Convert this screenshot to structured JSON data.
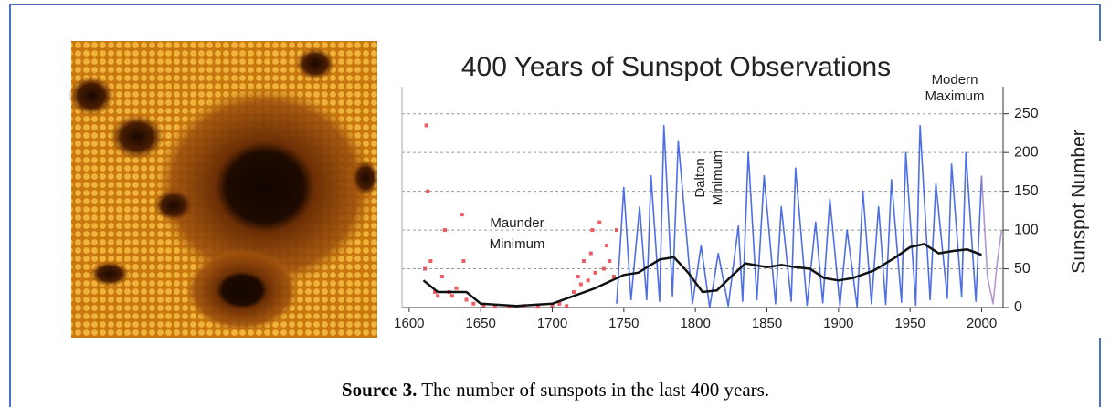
{
  "chart_data": {
    "type": "line",
    "title": "400 Years of Sunspot Observations",
    "y_label": "Sunspot Number",
    "y_axis_side": "right",
    "grid": true,
    "xlim": [
      1595,
      2015
    ],
    "ylim": [
      0,
      285
    ],
    "xticks": [
      1600,
      1650,
      1700,
      1750,
      1800,
      1850,
      1900,
      1950,
      2000
    ],
    "yticks": [
      0,
      50,
      100,
      150,
      200,
      250
    ],
    "annotations": [
      [
        "Maunder",
        "Minimum"
      ],
      [
        "Dalton",
        "Minimum"
      ],
      [
        "Modern",
        "Maximum"
      ]
    ],
    "series": [
      {
        "kind": "scatter",
        "color": "#e8333a",
        "x": [
          1611,
          1612,
          1613,
          1615,
          1618,
          1620,
          1623,
          1625,
          1628,
          1630,
          1633,
          1637,
          1638,
          1640,
          1645,
          1652,
          1660,
          1670,
          1680,
          1690,
          1700,
          1705,
          1710,
          1715,
          1718,
          1720,
          1722,
          1725,
          1727,
          1728,
          1730,
          1733,
          1736,
          1738,
          1740,
          1743,
          1745
        ],
        "values": [
          50,
          235,
          150,
          60,
          20,
          15,
          40,
          100,
          20,
          15,
          25,
          120,
          60,
          10,
          5,
          3,
          2,
          1,
          2,
          1,
          3,
          5,
          2,
          20,
          40,
          30,
          60,
          35,
          70,
          100,
          45,
          110,
          50,
          80,
          60,
          40,
          100
        ]
      },
      {
        "kind": "line",
        "color": "#2f55e0",
        "x": [
          1745,
          1750,
          1755,
          1761,
          1766,
          1769,
          1775,
          1778,
          1784,
          1788,
          1798,
          1804,
          1810,
          1816,
          1823,
          1830,
          1833,
          1837,
          1843,
          1848,
          1856,
          1860,
          1867,
          1870,
          1878,
          1884,
          1889,
          1894,
          1901,
          1906,
          1913,
          1917,
          1923,
          1928,
          1933,
          1937,
          1944,
          1947,
          1954,
          1957,
          1964,
          1968,
          1976,
          1979,
          1986,
          1989,
          1996,
          2000
        ],
        "values": [
          5,
          155,
          10,
          130,
          10,
          170,
          8,
          235,
          15,
          215,
          5,
          80,
          0,
          70,
          2,
          105,
          8,
          200,
          10,
          170,
          5,
          130,
          8,
          180,
          3,
          110,
          6,
          140,
          2,
          100,
          1,
          150,
          5,
          130,
          4,
          165,
          7,
          200,
          3,
          235,
          10,
          160,
          12,
          185,
          14,
          200,
          8,
          170
        ]
      },
      {
        "kind": "line",
        "color": "#a585c8",
        "x": [
          2000,
          2004,
          2008,
          2011,
          2014
        ],
        "values": [
          170,
          40,
          5,
          60,
          100
        ]
      },
      {
        "kind": "line",
        "color": "#111111",
        "x": [
          1610,
          1620,
          1640,
          1650,
          1675,
          1700,
          1715,
          1730,
          1750,
          1760,
          1775,
          1785,
          1795,
          1805,
          1815,
          1825,
          1835,
          1850,
          1860,
          1870,
          1880,
          1890,
          1900,
          1910,
          1925,
          1940,
          1950,
          1960,
          1970,
          1980,
          1990,
          2000
        ],
        "values": [
          35,
          20,
          20,
          5,
          2,
          5,
          15,
          25,
          42,
          45,
          62,
          65,
          45,
          20,
          22,
          40,
          57,
          52,
          55,
          52,
          50,
          38,
          35,
          38,
          48,
          65,
          78,
          82,
          70,
          73,
          75,
          68
        ]
      }
    ]
  },
  "caption": {
    "label": "Source 3.",
    "text": "The number of sunspots in the last 400 years."
  }
}
